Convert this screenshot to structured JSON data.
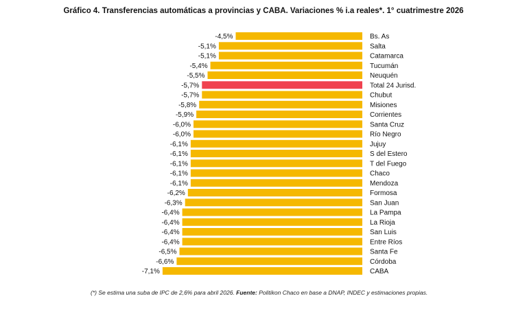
{
  "chart_data": {
    "type": "bar",
    "orientation": "horizontal",
    "title": "Gráfico 4. Transferencias automáticas a provincias y CABA. Variaciones % i.a reales*. 1° cuatrimestre 2026",
    "categories": [
      "Bs. As",
      "Salta",
      "Catamarca",
      "Tucumán",
      "Neuquén",
      "Total 24 Jurisd.",
      "Chubut",
      "Misiones",
      "Corrientes",
      "Santa Cruz",
      "Río Negro",
      "Jujuy",
      "S del Estero",
      "T del Fuego",
      "Chaco",
      "Mendoza",
      "Formosa",
      "San Juan",
      "La Pampa",
      "La Rioja",
      "San Luis",
      "Entre Ríos",
      "Santa Fe",
      "Córdoba",
      "CABA"
    ],
    "values": [
      -4.5,
      -5.1,
      -5.1,
      -5.4,
      -5.5,
      -5.7,
      -5.7,
      -5.8,
      -5.9,
      -6.0,
      -6.0,
      -6.1,
      -6.1,
      -6.1,
      -6.1,
      -6.1,
      -6.2,
      -6.3,
      -6.4,
      -6.4,
      -6.4,
      -6.4,
      -6.5,
      -6.6,
      -7.1
    ],
    "value_labels": [
      "-4,5%",
      "-5,1%",
      "-5,1%",
      "-5,4%",
      "-5,5%",
      "-5,7%",
      "-5,7%",
      "-5,8%",
      "-5,9%",
      "-6,0%",
      "-6,0%",
      "-6,1%",
      "-6,1%",
      "-6,1%",
      "-6,1%",
      "-6,1%",
      "-6,2%",
      "-6,3%",
      "-6,4%",
      "-6,4%",
      "-6,4%",
      "-6,4%",
      "-6,5%",
      "-6,6%",
      "-7,1%"
    ],
    "highlight_category": "Total 24 Jurisd.",
    "colors": {
      "bar": "#F5B800",
      "highlight": "#F0424F"
    },
    "grid": false,
    "legend": "none"
  },
  "footnote": {
    "note": "(*) Se estima una suba de IPC de 2,6% para abril 2026.",
    "source_label": "Fuente:",
    "source_text": "Politikon Chaco en base a DNAP, INDEC y estimaciones propias."
  }
}
